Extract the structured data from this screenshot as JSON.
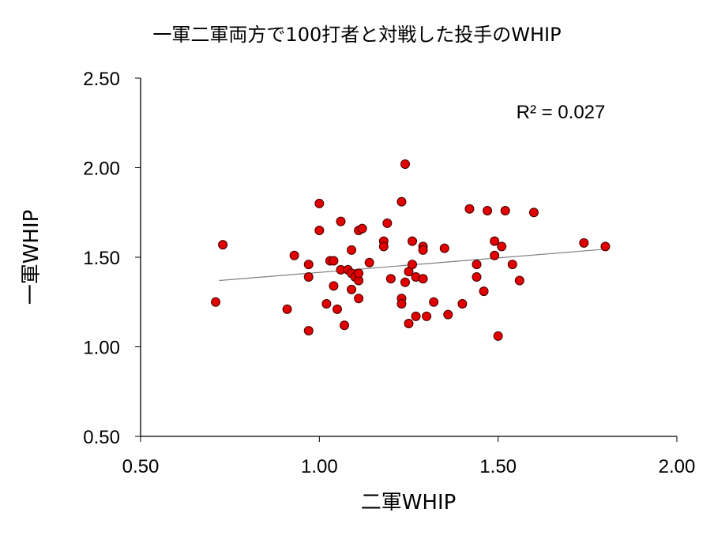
{
  "chart_data": {
    "type": "scatter",
    "title": "一軍二軍両方で100打者と対戦した投手のWHIP",
    "x_label": "二軍WHIP",
    "y_label": "一軍WHIP",
    "annotation": "R² = 0.027",
    "color": "#e00000",
    "xlim": [
      0.5,
      2.0
    ],
    "ylim": [
      0.5,
      2.5
    ],
    "xticks": [
      {
        "value": 0.5,
        "label": "0.50"
      },
      {
        "value": 1.0,
        "label": "1.00"
      },
      {
        "value": 1.5,
        "label": "1.50"
      },
      {
        "value": 2.0,
        "label": "2.00"
      }
    ],
    "yticks": [
      {
        "value": 0.5,
        "label": "0.50"
      },
      {
        "value": 1.0,
        "label": "1.00"
      },
      {
        "value": 1.5,
        "label": "1.50"
      },
      {
        "value": 2.0,
        "label": "2.00"
      },
      {
        "value": 2.5,
        "label": "2.50"
      }
    ],
    "x": [
      0.71,
      0.73,
      0.91,
      0.93,
      0.97,
      0.97,
      0.97,
      1.0,
      1.0,
      1.02,
      1.03,
      1.04,
      1.04,
      1.05,
      1.06,
      1.06,
      1.07,
      1.08,
      1.09,
      1.09,
      1.09,
      1.1,
      1.11,
      1.11,
      1.11,
      1.11,
      1.12,
      1.14,
      1.18,
      1.18,
      1.19,
      1.2,
      1.23,
      1.23,
      1.23,
      1.24,
      1.24,
      1.25,
      1.25,
      1.26,
      1.26,
      1.27,
      1.27,
      1.29,
      1.29,
      1.29,
      1.3,
      1.32,
      1.35,
      1.36,
      1.4,
      1.42,
      1.44,
      1.44,
      1.46,
      1.47,
      1.49,
      1.49,
      1.5,
      1.51,
      1.52,
      1.54,
      1.56,
      1.6,
      1.74,
      1.8
    ],
    "y": [
      1.25,
      1.57,
      1.21,
      1.51,
      1.09,
      1.39,
      1.46,
      1.8,
      1.65,
      1.24,
      1.48,
      1.48,
      1.34,
      1.21,
      1.43,
      1.7,
      1.12,
      1.43,
      1.41,
      1.54,
      1.32,
      1.39,
      1.27,
      1.37,
      1.41,
      1.65,
      1.66,
      1.47,
      1.59,
      1.56,
      1.69,
      1.38,
      1.27,
      1.24,
      1.81,
      2.02,
      1.36,
      1.13,
      1.42,
      1.46,
      1.59,
      1.17,
      1.39,
      1.38,
      1.56,
      1.54,
      1.17,
      1.25,
      1.55,
      1.18,
      1.24,
      1.77,
      1.39,
      1.46,
      1.31,
      1.76,
      1.51,
      1.59,
      1.06,
      1.56,
      1.76,
      1.46,
      1.37,
      1.75,
      1.58,
      1.56
    ],
    "trendline": {
      "color": "#808080",
      "x": [
        0.72,
        1.8
      ],
      "y": [
        1.37,
        1.545
      ]
    }
  }
}
